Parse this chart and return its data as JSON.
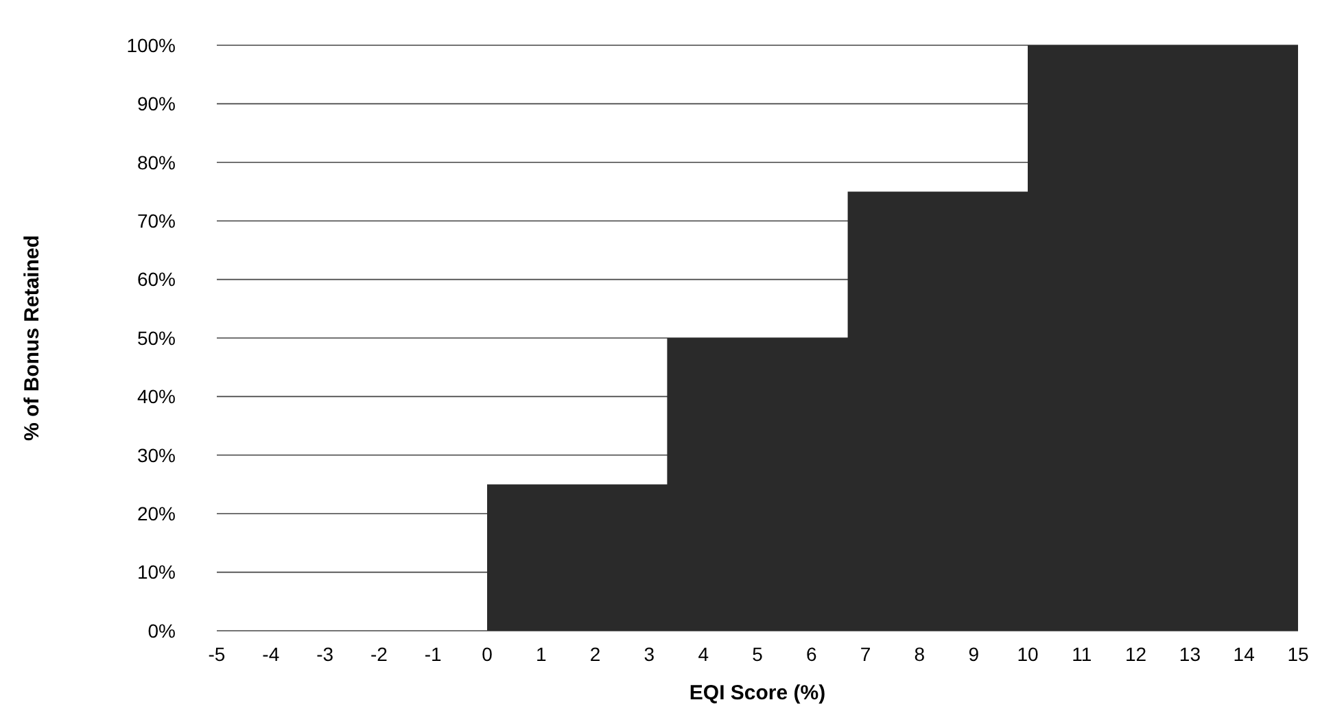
{
  "chart_data": {
    "type": "area",
    "xlabel": "EQI Score (%)",
    "ylabel": "% of Bonus Retained",
    "x": [
      -5,
      0,
      0,
      3.33,
      3.33,
      6.67,
      6.67,
      10,
      10,
      15
    ],
    "values": [
      0,
      0,
      25,
      25,
      50,
      50,
      75,
      75,
      100,
      100
    ],
    "color": "#2a2a2a",
    "xlim": [
      -5,
      15
    ],
    "xticks": [
      -5,
      -4,
      -3,
      -2,
      -1,
      0,
      1,
      2,
      3,
      4,
      5,
      6,
      7,
      8,
      9,
      10,
      11,
      12,
      13,
      14,
      15
    ],
    "ylim": [
      0,
      100
    ],
    "yticks": [
      {
        "value": 0,
        "label": "0%"
      },
      {
        "value": 10,
        "label": "10%"
      },
      {
        "value": 20,
        "label": "20%"
      },
      {
        "value": 30,
        "label": "30%"
      },
      {
        "value": 40,
        "label": "40%"
      },
      {
        "value": 50,
        "label": "50%"
      },
      {
        "value": 60,
        "label": "60%"
      },
      {
        "value": 70,
        "label": "70%"
      },
      {
        "value": 80,
        "label": "80%"
      },
      {
        "value": 90,
        "label": "90%"
      },
      {
        "value": 100,
        "label": "100%"
      }
    ],
    "grid": "y"
  }
}
